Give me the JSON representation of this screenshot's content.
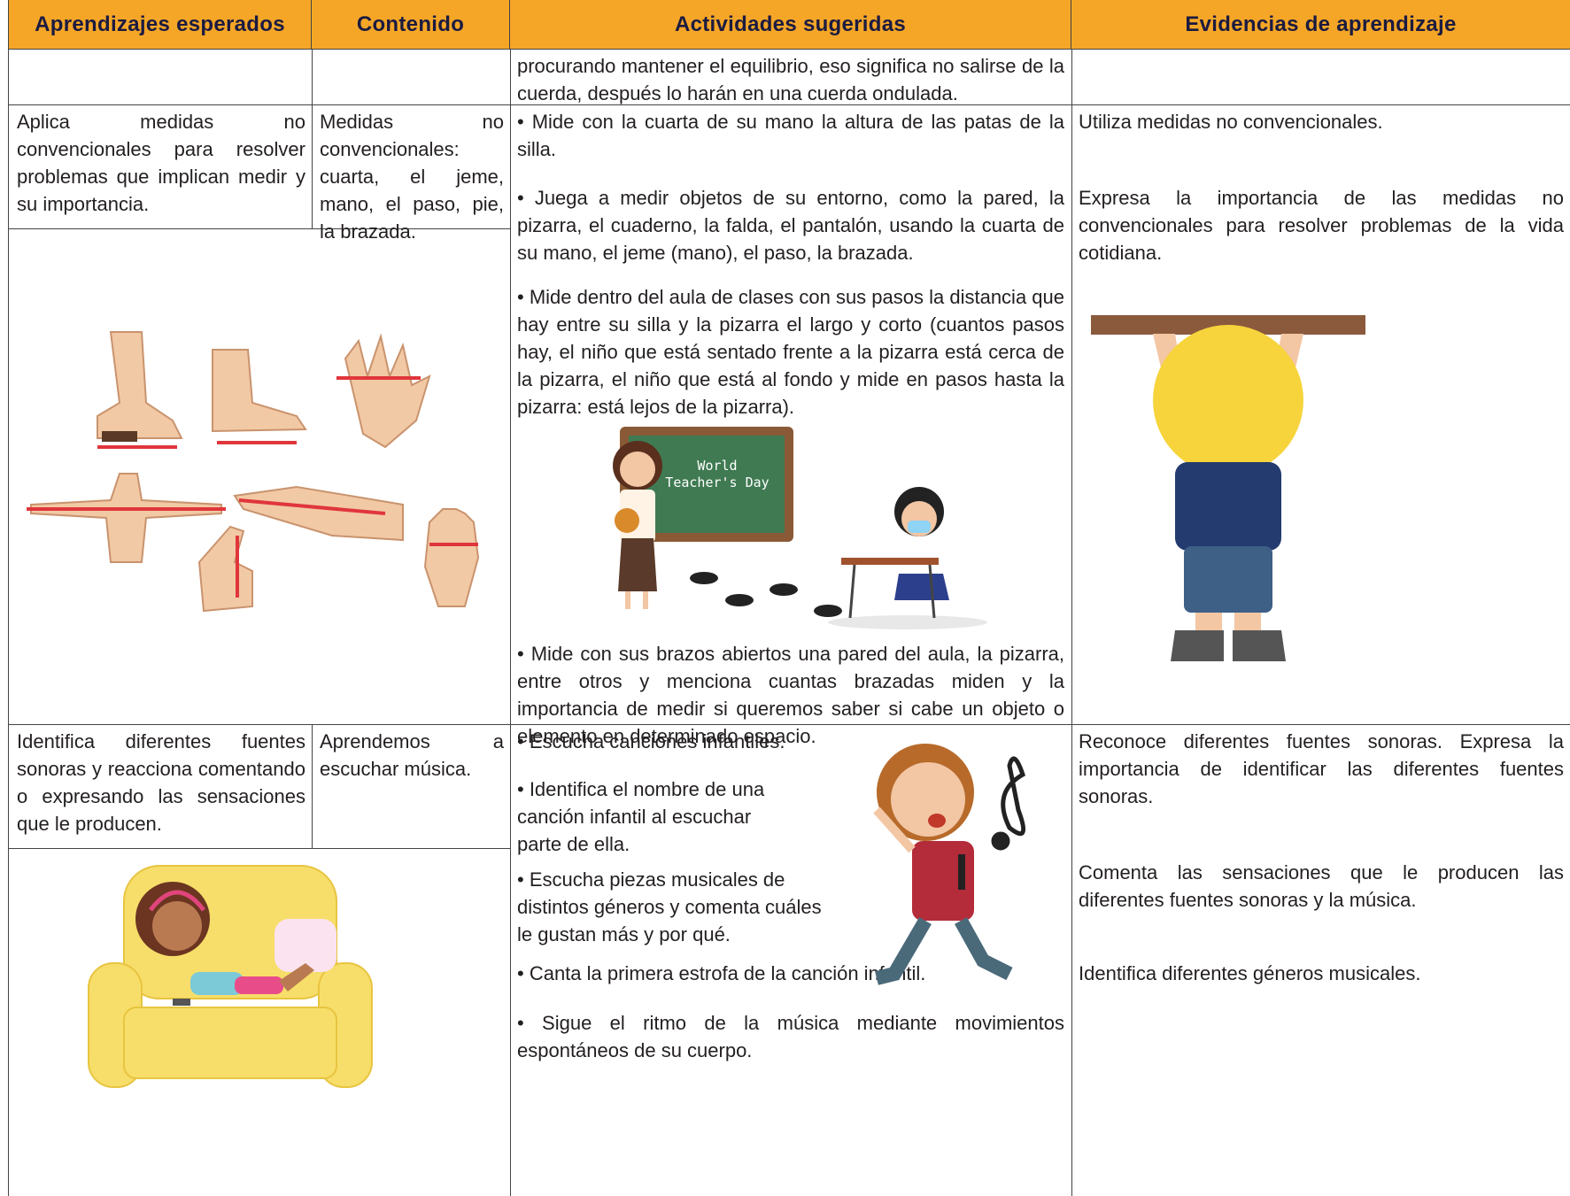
{
  "table": {
    "headers": [
      "Aprendizajes esperados",
      "Contenido",
      "Actividades sugeridas",
      "Evidencias de aprendizaje"
    ],
    "rows": [
      {
        "actividades": [
          "procurando mantener el equilibrio, eso significa no salirse de la cuerda, después lo harán en una cuerda ondulada."
        ]
      },
      {
        "aprendizajes": "Aplica medidas no convencionales para resolver problemas que implican medir y su importancia.",
        "contenido": "Medidas no convencionales: cuarta, el jeme, mano, el paso, pie, la brazada.",
        "actividades": [
          "• Mide con la cuarta de su mano la altura de las patas de la silla.",
          "• Juega a medir objetos de su entorno, como la pared, la pizarra, el cuaderno, la falda, el pantalón, usando la cuarta de su mano, el jeme (mano), el paso, la brazada.",
          "• Mide dentro del aula de clases con sus pasos la distancia que hay entre su silla y la pizarra el largo y corto (cuantos pasos hay, el niño que está sentado frente a la pizarra está cerca de la pizarra, el niño que está al fondo y mide en pasos hasta la pizarra: está lejos de la pizarra).",
          "• Mide con sus brazos abiertos una pared del aula, la pizarra, entre otros y menciona cuantas brazadas miden y la importancia de medir si queremos saber si cabe un objeto o elemento en determinado espacio."
        ],
        "illustration_text": [
          "World",
          "Teacher's Day"
        ],
        "evidencias": [
          "Utiliza medidas no convencionales.",
          "Expresa la importancia de las medidas no convencionales para resolver problemas de la vida cotidiana."
        ]
      },
      {
        "aprendizajes": "Identifica diferentes fuentes sonoras y reacciona comentando o expresando las sensaciones que le producen.",
        "contenido": "Aprendemos a escuchar música.",
        "actividades": [
          "• Escucha canciones infantiles.",
          "• Identifica el nombre de una canción infantil al escuchar parte de ella.",
          "• Escucha piezas musicales de distintos géneros y comenta cuáles le gustan más y por qué.",
          "• Canta la primera estrofa de la canción infantil.",
          "• Sigue el ritmo de la música mediante movimientos espontáneos de su cuerpo."
        ],
        "evidencias": [
          "Reconoce diferentes fuentes sonoras. Expresa la importancia de identificar las diferentes fuentes sonoras.",
          "Comenta las sensaciones que le producen las diferentes fuentes sonoras y la música.",
          "Identifica diferentes géneros musicales."
        ]
      }
    ]
  }
}
